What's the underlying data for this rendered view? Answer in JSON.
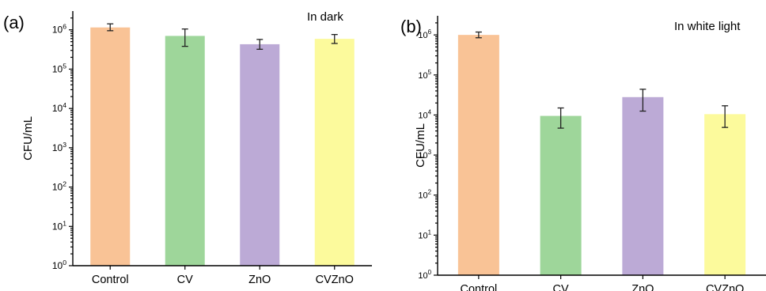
{
  "chart_data": [
    {
      "type": "bar",
      "panel_label": "(a)",
      "annotation": "In dark",
      "ylabel": "CFU/mL",
      "xlabel": "",
      "y_scale": "log",
      "ylim": [
        1,
        3000000
      ],
      "categories": [
        "Control",
        "CV",
        "ZnO",
        "CVZnO"
      ],
      "values": [
        1150000,
        700000,
        430000,
        590000
      ],
      "error_low": [
        950000,
        380000,
        320000,
        450000
      ],
      "error_high": [
        1420000,
        1050000,
        570000,
        760000
      ],
      "colors": [
        "#f9c396",
        "#9ed69a",
        "#bcaad6",
        "#fcfa9c"
      ],
      "y_ticks": [
        {
          "value": 1,
          "base": "10",
          "exp": "0"
        },
        {
          "value": 10,
          "base": "10",
          "exp": "1"
        },
        {
          "value": 100,
          "base": "10",
          "exp": "2"
        },
        {
          "value": 1000,
          "base": "10",
          "exp": "3"
        },
        {
          "value": 10000,
          "base": "10",
          "exp": "4"
        },
        {
          "value": 100000,
          "base": "10",
          "exp": "5"
        },
        {
          "value": 1000000,
          "base": "10",
          "exp": "6"
        }
      ],
      "grid": false
    },
    {
      "type": "bar",
      "panel_label": "(b)",
      "annotation": "In white light",
      "ylabel": "CFU/mL",
      "xlabel": "",
      "y_scale": "log",
      "ylim": [
        1,
        3000000
      ],
      "categories": [
        "Control",
        "CV",
        "ZnO",
        "CVZnO"
      ],
      "values": [
        1000000,
        9500,
        28000,
        10500
      ],
      "error_low": [
        850000,
        4700,
        12500,
        4900
      ],
      "error_high": [
        1180000,
        15000,
        44000,
        17000
      ],
      "colors": [
        "#f9c396",
        "#9ed69a",
        "#bcaad6",
        "#fcfa9c"
      ],
      "y_ticks": [
        {
          "value": 1,
          "base": "10",
          "exp": "0"
        },
        {
          "value": 10,
          "base": "10",
          "exp": "1"
        },
        {
          "value": 100,
          "base": "10",
          "exp": "2"
        },
        {
          "value": 1000,
          "base": "10",
          "exp": "3"
        },
        {
          "value": 10000,
          "base": "10",
          "exp": "4"
        },
        {
          "value": 100000,
          "base": "10",
          "exp": "5"
        },
        {
          "value": 1000000,
          "base": "10",
          "exp": "6"
        }
      ],
      "grid": false
    }
  ]
}
